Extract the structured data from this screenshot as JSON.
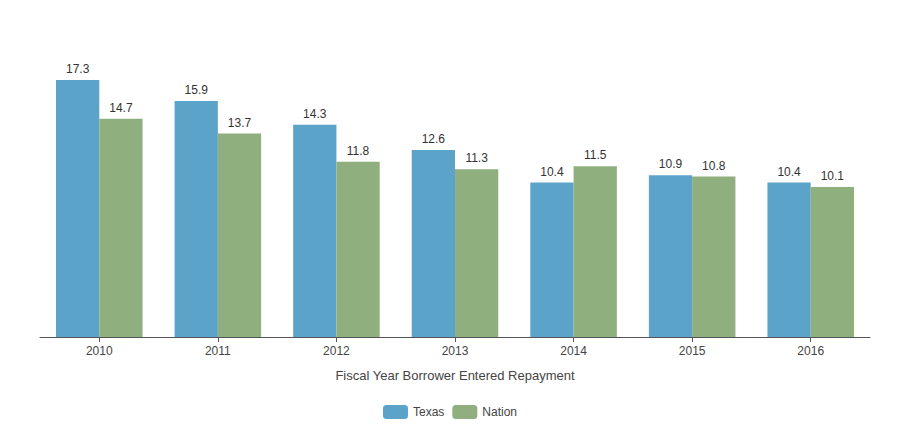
{
  "chart_data": {
    "type": "bar",
    "xlabel": "Fiscal Year Borrower Entered Repayment",
    "categories": [
      "2010",
      "2011",
      "2012",
      "2013",
      "2014",
      "2015",
      "2016"
    ],
    "series": [
      {
        "name": "Texas",
        "color": "#5BA3C9",
        "values": [
          17.3,
          15.9,
          14.3,
          12.6,
          10.4,
          10.9,
          10.4
        ]
      },
      {
        "name": "Nation",
        "color": "#8FAF7E",
        "values": [
          14.7,
          13.7,
          11.8,
          11.3,
          11.5,
          10.8,
          10.1
        ]
      }
    ],
    "ylim": [
      0,
      20
    ],
    "grid": false,
    "legend": "bottom",
    "data_labels": true,
    "tick_labels": "x"
  }
}
